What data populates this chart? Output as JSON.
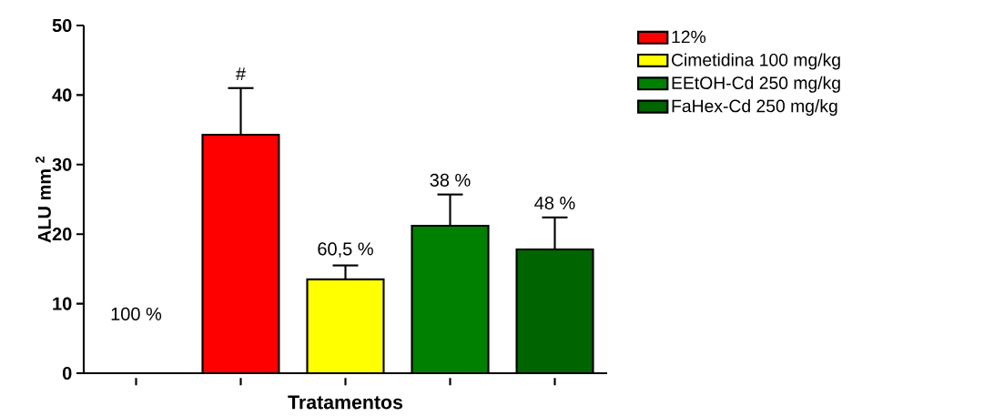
{
  "chart_data": {
    "type": "bar",
    "xlabel": "Tratamentos",
    "ylabel": "ALU mm $^{2}$",
    "categories": [
      null,
      null,
      null,
      null,
      null
    ],
    "series": [
      {
        "name": "12%",
        "color": "#ff0000",
        "values": [
          null,
          34.3,
          null,
          null,
          null
        ],
        "errors": [
          null,
          [
            34.3,
            41.0
          ],
          null,
          null,
          null
        ]
      },
      {
        "name": "Cimetidina 100 mg/kg",
        "color": "#ffff00",
        "values": [
          null,
          null,
          13.5,
          null,
          null
        ],
        "errors": [
          null,
          null,
          [
            13.5,
            15.5
          ],
          null,
          null
        ]
      },
      {
        "name": "EEtOH-Cd 250 mg/kg",
        "color": "#008000",
        "values": [
          null,
          null,
          null,
          21.2,
          null
        ],
        "errors": [
          null,
          null,
          null,
          [
            21.2,
            25.7
          ],
          null
        ]
      },
      {
        "name": "FaHex-Cd 250 mg/kg",
        "color": "#006400",
        "values": [
          null,
          null,
          null,
          null,
          17.8
        ],
        "errors": [
          null,
          null,
          null,
          null,
          [
            17.8,
            22.4
          ]
        ]
      }
    ],
    "annotations": [
      "100 %",
      "#",
      "60,5 %",
      "38 %",
      "48 %"
    ],
    "ylim": [
      0,
      50
    ],
    "yticks": [
      0,
      10,
      20,
      30,
      40,
      50
    ],
    "grid": false,
    "legend": "right"
  }
}
